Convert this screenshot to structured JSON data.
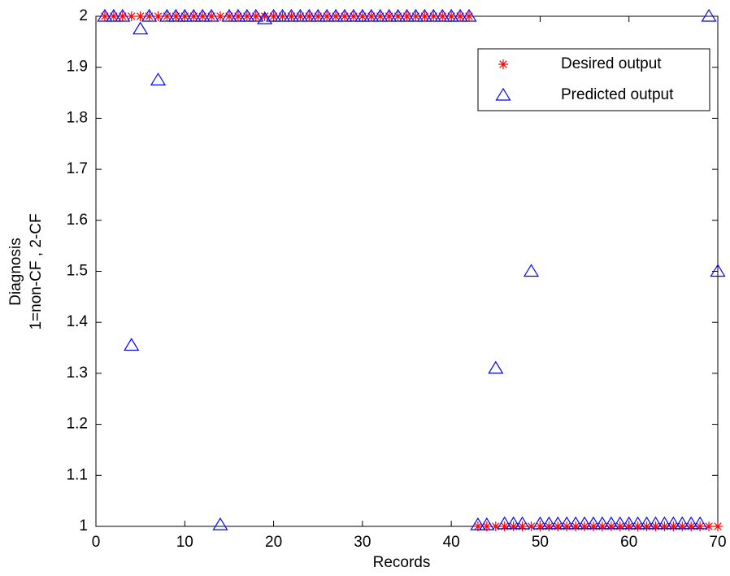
{
  "chart_data": {
    "type": "scatter",
    "xlabel": "Records",
    "ylabel": [
      "Diagnosis",
      "1=non-CF , 2-CF"
    ],
    "x": [
      1,
      2,
      3,
      4,
      5,
      6,
      7,
      8,
      9,
      10,
      11,
      12,
      13,
      14,
      15,
      16,
      17,
      18,
      19,
      20,
      21,
      22,
      23,
      24,
      25,
      26,
      27,
      28,
      29,
      30,
      31,
      32,
      33,
      34,
      35,
      36,
      37,
      38,
      39,
      40,
      41,
      42,
      43,
      44,
      45,
      46,
      47,
      48,
      49,
      50,
      51,
      52,
      53,
      54,
      55,
      56,
      57,
      58,
      59,
      60,
      61,
      62,
      63,
      64,
      65,
      66,
      67,
      68,
      69,
      70
    ],
    "series": [
      {
        "name": "Desired output",
        "color": "#ff0000",
        "marker": "asterisk",
        "values": [
          2,
          2,
          2,
          2,
          2,
          2,
          2,
          2,
          2,
          2,
          2,
          2,
          2,
          2,
          2,
          2,
          2,
          2,
          2,
          2,
          2,
          2,
          2,
          2,
          2,
          2,
          2,
          2,
          2,
          2,
          2,
          2,
          2,
          2,
          2,
          2,
          2,
          2,
          2,
          2,
          2,
          2,
          1,
          1,
          1,
          1,
          1,
          1,
          1,
          1,
          1,
          1,
          1,
          1,
          1,
          1,
          1,
          1,
          1,
          1,
          1,
          1,
          1,
          1,
          1,
          1,
          1,
          1,
          1,
          1
        ]
      },
      {
        "name": "Predicted output",
        "color": "#0000ff",
        "marker": "triangle",
        "values": [
          2,
          2,
          2,
          1.355,
          1.975,
          2,
          1.875,
          2,
          2,
          2,
          2,
          2,
          2,
          1.003,
          2,
          2,
          2,
          2,
          1.995,
          2,
          2,
          2,
          2,
          2,
          2,
          2,
          2,
          2,
          2,
          2,
          2,
          2,
          2,
          2,
          2,
          2,
          2,
          2,
          2,
          2,
          2,
          2,
          1.003,
          1.003,
          1.31,
          1.005,
          1.005,
          1.005,
          1.5,
          1.005,
          1.005,
          1.005,
          1.005,
          1.005,
          1.005,
          1.005,
          1.005,
          1.005,
          1.005,
          1.005,
          1.005,
          1.005,
          1.005,
          1.005,
          1.005,
          1.005,
          1.005,
          1.005,
          2,
          1.5
        ]
      }
    ],
    "xlim": [
      0,
      70
    ],
    "xticks": [
      0,
      10,
      20,
      30,
      40,
      50,
      60,
      70
    ],
    "ylim": [
      1,
      2
    ],
    "yticks": [
      1,
      1.1,
      1.2,
      1.3,
      1.4,
      1.5,
      1.6,
      1.7,
      1.8,
      1.9,
      2
    ],
    "legend": "northeast"
  }
}
